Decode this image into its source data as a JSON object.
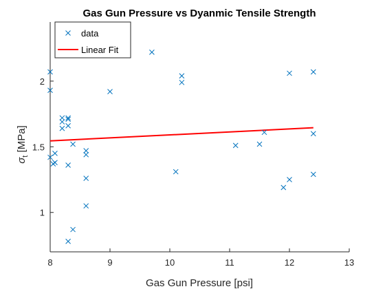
{
  "chart_data": {
    "type": "scatter",
    "title": "Gas Gun Pressure vs Dyanmic Tensile Strength",
    "xlabel": "Gas Gun Pressure [psi]",
    "ylabel": "σ_t [MPa]",
    "ylabel_main": "σ",
    "ylabel_sub": "t",
    "ylabel_unit": " [MPa]",
    "xlim": [
      8,
      13
    ],
    "ylim": [
      0.7,
      2.45
    ],
    "xticks": [
      8,
      9,
      10,
      11,
      12,
      13
    ],
    "yticks": [
      1,
      1.5,
      2
    ],
    "ytick_labels": [
      "1",
      "1.5",
      "2"
    ],
    "grid": false,
    "legend_location": "top-left",
    "series": [
      {
        "name": "data",
        "marker": "x",
        "color": "#0072BD",
        "points": [
          [
            8.0,
            2.07
          ],
          [
            8.0,
            1.93
          ],
          [
            8.0,
            1.42
          ],
          [
            8.05,
            1.37
          ],
          [
            8.08,
            1.38
          ],
          [
            8.08,
            1.45
          ],
          [
            8.2,
            1.72
          ],
          [
            8.2,
            1.69
          ],
          [
            8.2,
            1.64
          ],
          [
            8.3,
            1.72
          ],
          [
            8.3,
            1.71
          ],
          [
            8.3,
            1.66
          ],
          [
            8.3,
            1.36
          ],
          [
            8.3,
            0.78
          ],
          [
            8.38,
            0.87
          ],
          [
            8.38,
            1.52
          ],
          [
            8.6,
            1.47
          ],
          [
            8.6,
            1.44
          ],
          [
            8.6,
            1.26
          ],
          [
            8.6,
            1.05
          ],
          [
            9.0,
            1.92
          ],
          [
            9.7,
            2.22
          ],
          [
            10.1,
            1.31
          ],
          [
            10.2,
            2.04
          ],
          [
            10.2,
            1.99
          ],
          [
            11.1,
            1.51
          ],
          [
            11.5,
            1.52
          ],
          [
            11.58,
            1.61
          ],
          [
            11.9,
            1.19
          ],
          [
            12.0,
            2.06
          ],
          [
            12.0,
            1.25
          ],
          [
            12.4,
            2.07
          ],
          [
            12.4,
            1.6
          ],
          [
            12.4,
            1.29
          ]
        ]
      },
      {
        "name": "Linear Fit",
        "line": true,
        "color": "#FF0000",
        "x": [
          8.0,
          12.4
        ],
        "y": [
          1.545,
          1.645
        ]
      }
    ]
  }
}
